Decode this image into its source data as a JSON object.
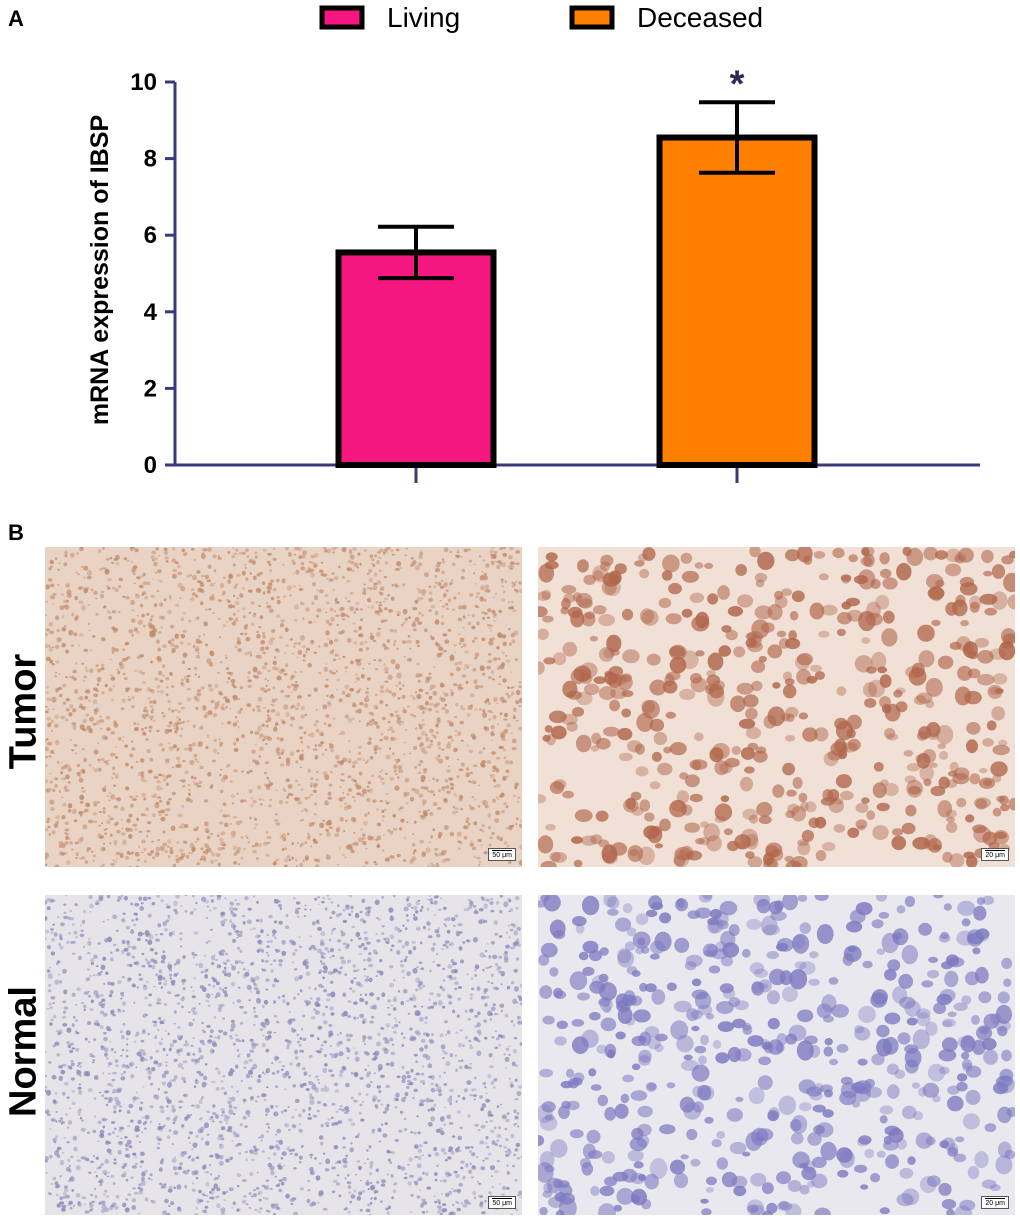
{
  "panels": {
    "a": "A",
    "b": "B"
  },
  "chart_data": {
    "type": "bar",
    "categories": [
      "Living",
      "Deceased"
    ],
    "series": [
      {
        "name": "Living",
        "value": 5.55,
        "error": 0.67,
        "color": "#f5177f"
      },
      {
        "name": "Deceased",
        "value": 8.55,
        "error": 0.92,
        "color": "#ff8000"
      }
    ],
    "ylabel": "mRNA expression of IBSP",
    "xlabel": "",
    "ylim": [
      0,
      10
    ],
    "yticks": [
      "0",
      "2",
      "4",
      "6",
      "8",
      "10"
    ],
    "significance": [
      {
        "category": "Deceased",
        "mark": "*"
      }
    ],
    "legend": {
      "placement": "top",
      "entries": [
        "Living",
        "Deceased"
      ]
    },
    "axis_color": "#3a3a7a",
    "grid": false
  },
  "ihc": {
    "rows": [
      "Tumor",
      "Normal"
    ],
    "images": [
      {
        "row": "Tumor",
        "scale": "50 μm",
        "stain": "#c08a6a",
        "bg": "#e9d3c4"
      },
      {
        "row": "Tumor",
        "scale": "20 μm",
        "stain": "#b0654a",
        "bg": "#f0e0d6"
      },
      {
        "row": "Normal",
        "scale": "50 μm",
        "stain": "#8a88b8",
        "bg": "#e6e4e8"
      },
      {
        "row": "Normal",
        "scale": "20 μm",
        "stain": "#7d79c0",
        "bg": "#eae8ef"
      }
    ]
  }
}
